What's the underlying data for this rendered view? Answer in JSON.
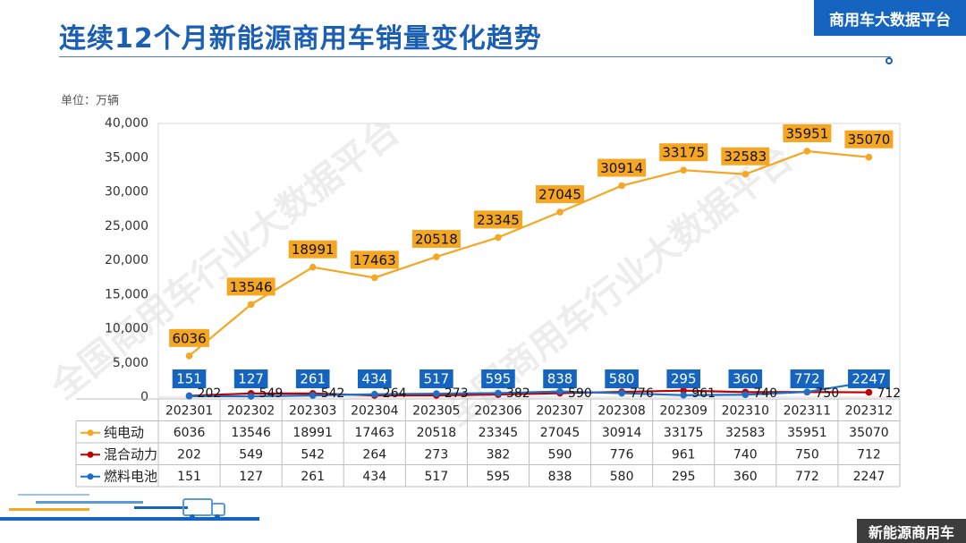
{
  "page": {
    "title": "连续12个月新能源商用车销量变化趋势",
    "brand": "商用车大数据平台",
    "footer_badge": "新能源商用车",
    "watermark": "全国商用车行业大数据平台"
  },
  "colors": {
    "title": "#1a5fb4",
    "brand_bg": "#1565c0",
    "pure_electric": "#f5a623",
    "hybrid": "#c00000",
    "fuel_cell": "#1f6fc5",
    "fuel_cell_label_bg": "#1565c0"
  },
  "chart_data": {
    "type": "line",
    "title": "连续12个月新能源商用车销量变化趋势",
    "unit_label": "单位：万辆",
    "ylim": [
      0,
      40000
    ],
    "yticks": [
      0,
      5000,
      10000,
      15000,
      20000,
      25000,
      30000,
      35000,
      40000
    ],
    "ytick_labels": [
      "0",
      "5,000",
      "10,000",
      "15,000",
      "20,000",
      "25,000",
      "30,000",
      "35,000",
      "40,000"
    ],
    "categories": [
      "202301",
      "202302",
      "202303",
      "202304",
      "202305",
      "202306",
      "202307",
      "202308",
      "202309",
      "202310",
      "202311",
      "202312"
    ],
    "series": [
      {
        "name": "纯电动",
        "color": "#f5a623",
        "values": [
          6036,
          13546,
          18991,
          17463,
          20518,
          23345,
          27045,
          30914,
          33175,
          32583,
          35951,
          35070
        ]
      },
      {
        "name": "混合动力",
        "color": "#c00000",
        "values": [
          202,
          549,
          542,
          264,
          273,
          382,
          590,
          776,
          961,
          740,
          750,
          712
        ]
      },
      {
        "name": "燃料电池",
        "color": "#1f6fc5",
        "values": [
          151,
          127,
          261,
          434,
          517,
          595,
          838,
          580,
          295,
          360,
          772,
          2247
        ]
      }
    ],
    "table": true,
    "grid": false
  }
}
